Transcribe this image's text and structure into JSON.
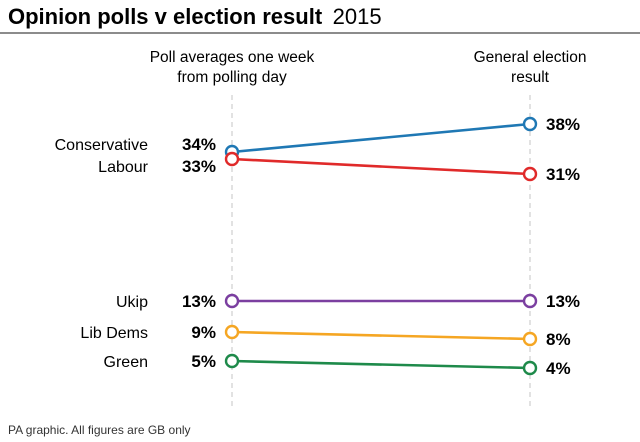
{
  "chart_data": {
    "type": "line",
    "title": "Opinion polls v election result",
    "title_year": "2015",
    "x": [
      [
        "Poll averages one week",
        "from polling day"
      ],
      [
        "General election",
        "result"
      ]
    ],
    "series": [
      {
        "name": "Conservative",
        "values": [
          34,
          38
        ],
        "labels": [
          "34%",
          "38%"
        ],
        "color": "#1f78b4"
      },
      {
        "name": "Labour",
        "values": [
          33,
          31
        ],
        "labels": [
          "33%",
          "31%"
        ],
        "color": "#e02a2a"
      },
      {
        "name": "Ukip",
        "values": [
          13,
          13
        ],
        "labels": [
          "13%",
          "13%"
        ],
        "color": "#7b3fa0"
      },
      {
        "name": "Lib Dems",
        "values": [
          9,
          8
        ],
        "labels": [
          "9%",
          "8%"
        ],
        "color": "#f5a623"
      },
      {
        "name": "Green",
        "values": [
          5,
          4
        ],
        "labels": [
          "5%",
          "4%"
        ],
        "color": "#1e8a4a"
      }
    ],
    "ylim": [
      0,
      40
    ],
    "grid": false,
    "footnote": "PA graphic. All figures are GB only"
  }
}
